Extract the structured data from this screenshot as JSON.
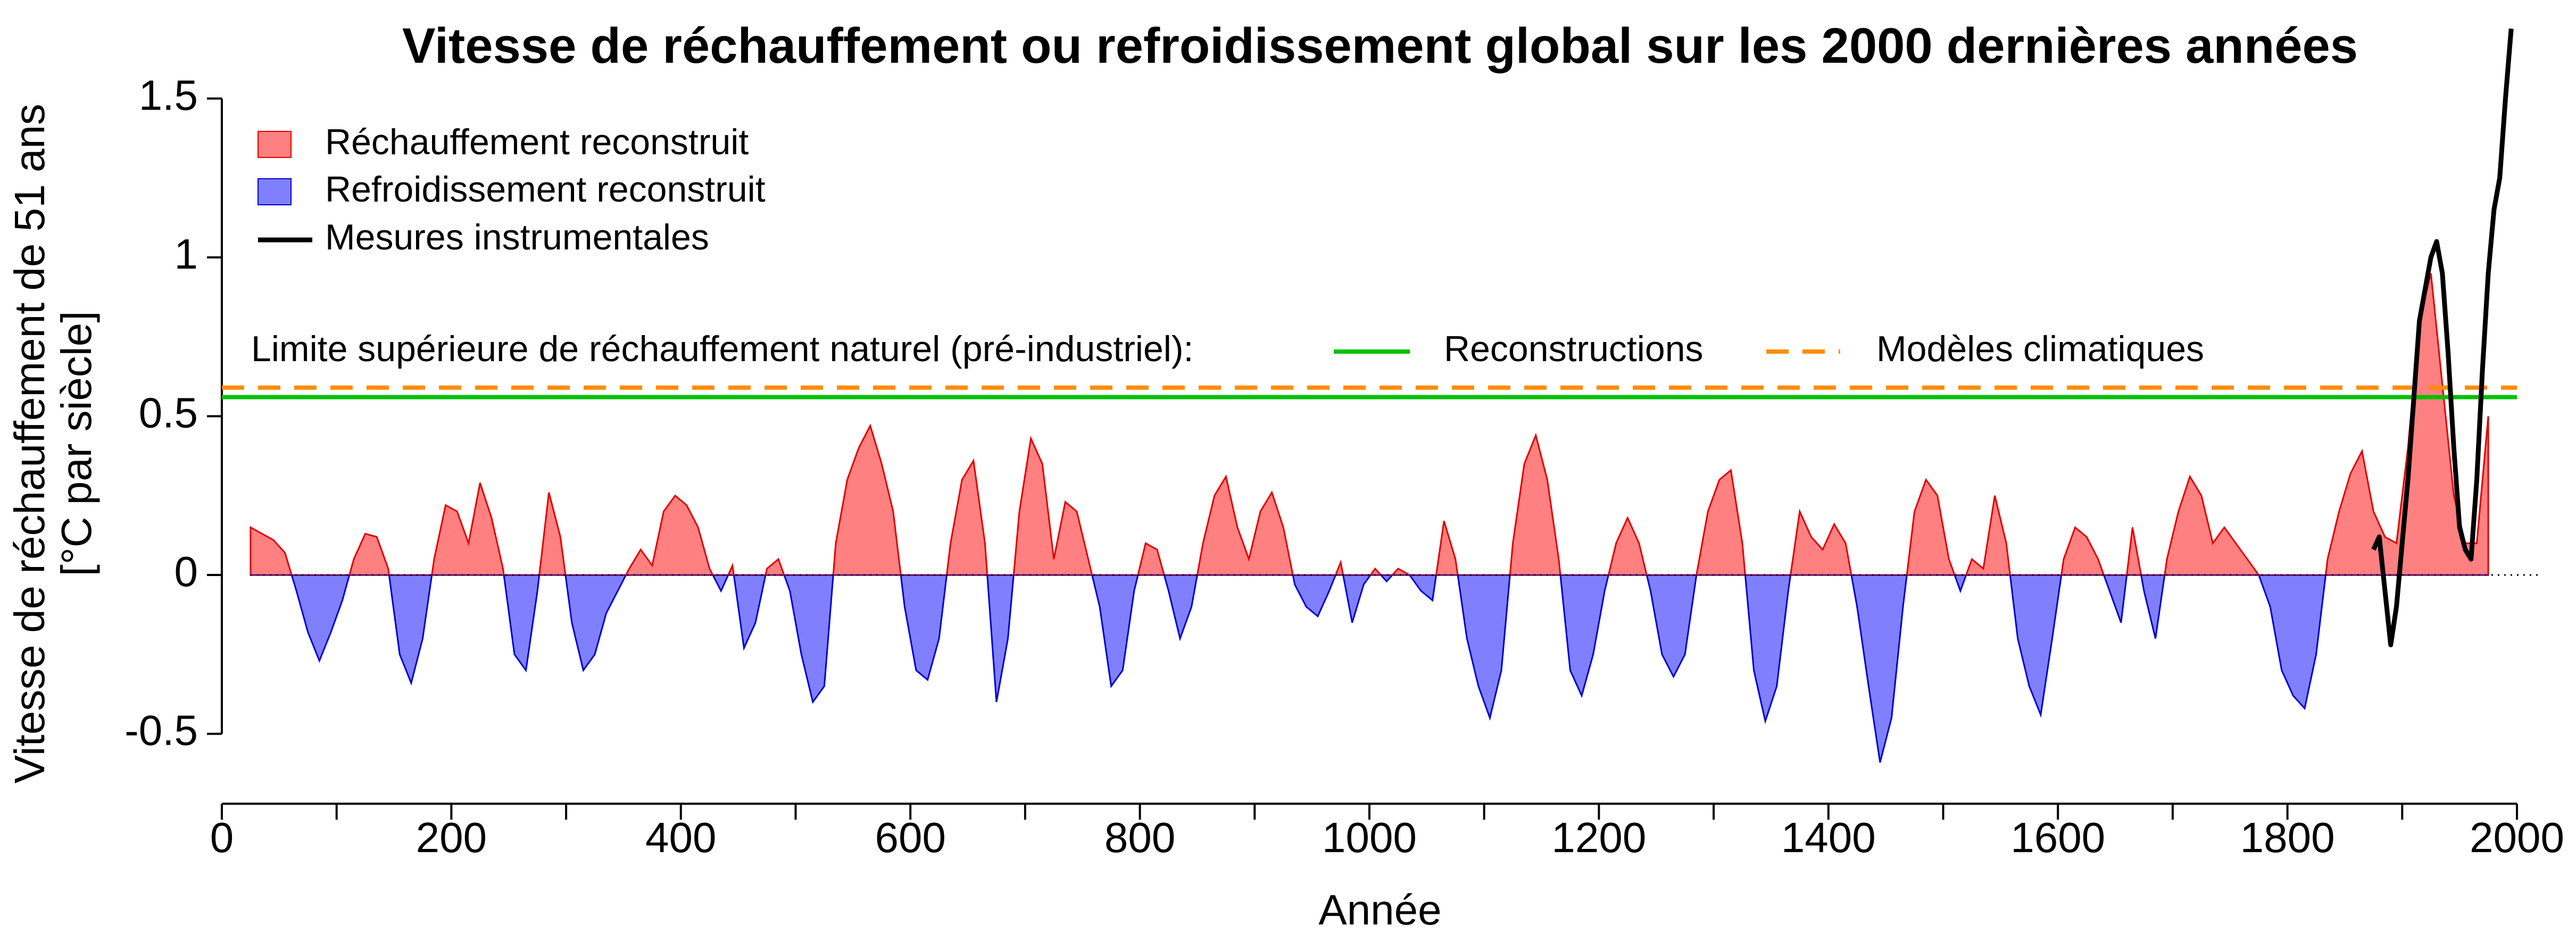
{
  "chart_data": {
    "type": "area",
    "title": "Vitesse de réchauffement ou refroidissement global sur les 2000 dernières années",
    "xlabel": "Année",
    "ylabel": [
      "Vitesse de réchauffement de 51 ans",
      "[°C par siècle]"
    ],
    "xlim": [
      0,
      2000
    ],
    "xticks": [
      0,
      200,
      400,
      600,
      800,
      1000,
      1200,
      1400,
      1600,
      1800,
      2000
    ],
    "xminor_ticks": [
      100,
      300,
      500,
      700,
      900,
      1100,
      1300,
      1500,
      1700,
      1900
    ],
    "ylim": [
      -0.72,
      1.75
    ],
    "yticks": [
      -0.5,
      0,
      0.5,
      1,
      1.5
    ],
    "x": [
      25,
      35,
      45,
      55,
      65,
      75,
      85,
      95,
      105,
      115,
      125,
      135,
      145,
      155,
      165,
      175,
      185,
      195,
      205,
      215,
      225,
      235,
      245,
      255,
      265,
      275,
      285,
      295,
      305,
      315,
      325,
      335,
      345,
      355,
      365,
      375,
      385,
      395,
      405,
      415,
      425,
      435,
      445,
      455,
      465,
      475,
      485,
      495,
      505,
      515,
      525,
      535,
      545,
      555,
      565,
      575,
      585,
      595,
      605,
      615,
      625,
      635,
      645,
      655,
      665,
      675,
      685,
      695,
      705,
      715,
      725,
      735,
      745,
      755,
      765,
      775,
      785,
      795,
      805,
      815,
      825,
      835,
      845,
      855,
      865,
      875,
      885,
      895,
      905,
      915,
      925,
      935,
      945,
      955,
      965,
      975,
      985,
      995,
      1005,
      1015,
      1025,
      1035,
      1045,
      1055,
      1065,
      1075,
      1085,
      1095,
      1105,
      1115,
      1125,
      1135,
      1145,
      1155,
      1165,
      1175,
      1185,
      1195,
      1205,
      1215,
      1225,
      1235,
      1245,
      1255,
      1265,
      1275,
      1285,
      1295,
      1305,
      1315,
      1325,
      1335,
      1345,
      1355,
      1365,
      1375,
      1385,
      1395,
      1405,
      1415,
      1425,
      1435,
      1445,
      1455,
      1465,
      1475,
      1485,
      1495,
      1505,
      1515,
      1525,
      1535,
      1545,
      1555,
      1565,
      1575,
      1585,
      1595,
      1605,
      1615,
      1625,
      1635,
      1645,
      1655,
      1665,
      1675,
      1685,
      1695,
      1705,
      1715,
      1725,
      1735,
      1745,
      1755,
      1765,
      1775,
      1785,
      1795,
      1805,
      1815,
      1825,
      1835,
      1845,
      1855,
      1865,
      1875,
      1885,
      1895,
      1905,
      1915,
      1925,
      1935,
      1945,
      1955,
      1965,
      1975
    ],
    "values": [
      0.15,
      0.13,
      0.11,
      0.07,
      -0.05,
      -0.18,
      -0.27,
      -0.18,
      -0.08,
      0.05,
      0.13,
      0.12,
      0.02,
      -0.25,
      -0.34,
      -0.2,
      0.05,
      0.22,
      0.2,
      0.1,
      0.29,
      0.18,
      0.02,
      -0.25,
      -0.3,
      -0.05,
      0.26,
      0.12,
      -0.15,
      -0.3,
      -0.25,
      -0.12,
      -0.05,
      0.02,
      0.08,
      0.03,
      0.2,
      0.25,
      0.22,
      0.15,
      0.02,
      -0.05,
      0.03,
      -0.23,
      -0.15,
      0.02,
      0.05,
      -0.05,
      -0.25,
      -0.4,
      -0.35,
      0.1,
      0.3,
      0.4,
      0.47,
      0.35,
      0.2,
      -0.1,
      -0.3,
      -0.33,
      -0.2,
      0.1,
      0.3,
      0.36,
      0.1,
      -0.4,
      -0.2,
      0.2,
      0.43,
      0.35,
      0.05,
      0.23,
      0.2,
      0.05,
      -0.1,
      -0.35,
      -0.3,
      -0.05,
      0.1,
      0.08,
      -0.05,
      -0.2,
      -0.1,
      0.1,
      0.25,
      0.31,
      0.15,
      0.05,
      0.2,
      0.26,
      0.15,
      -0.03,
      -0.1,
      -0.13,
      -0.05,
      0.04,
      -0.15,
      -0.03,
      0.02,
      -0.02,
      0.02,
      0,
      -0.05,
      -0.08,
      0.17,
      0.05,
      -0.2,
      -0.35,
      -0.45,
      -0.3,
      0.1,
      0.35,
      0.44,
      0.3,
      0.05,
      -0.3,
      -0.38,
      -0.25,
      -0.05,
      0.1,
      0.18,
      0.1,
      -0.05,
      -0.25,
      -0.32,
      -0.25,
      0,
      0.2,
      0.3,
      0.33,
      0.1,
      -0.3,
      -0.46,
      -0.35,
      -0.05,
      0.2,
      0.12,
      0.08,
      0.16,
      0.1,
      -0.1,
      -0.35,
      -0.59,
      -0.45,
      -0.1,
      0.2,
      0.3,
      0.25,
      0.05,
      -0.05,
      0.05,
      0.02,
      0.25,
      0.1,
      -0.2,
      -0.35,
      -0.44,
      -0.2,
      0.05,
      0.15,
      0.12,
      0.05,
      -0.05,
      -0.15,
      0.15,
      -0.05,
      -0.2,
      0.05,
      0.2,
      0.31,
      0.25,
      0.1,
      0.15,
      0.1,
      0.05,
      0,
      -0.1,
      -0.3,
      -0.38,
      -0.42,
      -0.25,
      0.05,
      0.2,
      0.32,
      0.39,
      0.2,
      0.12,
      0.1,
      0.4,
      0.8,
      0.95,
      0.6,
      0.25,
      0.1,
      0.1,
      0.5
    ],
    "areas": [
      {
        "name": "Réchauffement reconstruit",
        "fill": "#ff8080",
        "stroke": "#e00000",
        "side": "above"
      },
      {
        "name": "Refroidissement reconstruit",
        "fill": "#8080ff",
        "stroke": "#0000d0",
        "side": "below"
      }
    ],
    "instrumental": {
      "name": "Mesures instrumentales",
      "color": "#000000",
      "x": [
        1875,
        1880,
        1885,
        1890,
        1895,
        1900,
        1905,
        1910,
        1915,
        1920,
        1925,
        1930,
        1935,
        1940,
        1945,
        1950,
        1955,
        1960,
        1965,
        1970,
        1975,
        1980,
        1985,
        1990,
        1995
      ],
      "values": [
        0.08,
        0.12,
        -0.05,
        -0.22,
        -0.1,
        0.1,
        0.3,
        0.55,
        0.8,
        0.9,
        1.0,
        1.05,
        0.95,
        0.7,
        0.4,
        0.15,
        0.08,
        0.05,
        0.3,
        0.65,
        0.95,
        1.15,
        1.25,
        1.5,
        1.72
      ]
    },
    "limits": {
      "label": "Limite supérieure de réchauffement naturel (pré-industriel):",
      "lines": [
        {
          "name": "Reconstructions",
          "value": 0.56,
          "color": "#00c000",
          "dashed": false
        },
        {
          "name": "Modèles climatiques",
          "value": 0.59,
          "color": "#ff8c00",
          "dashed": true
        }
      ]
    }
  }
}
